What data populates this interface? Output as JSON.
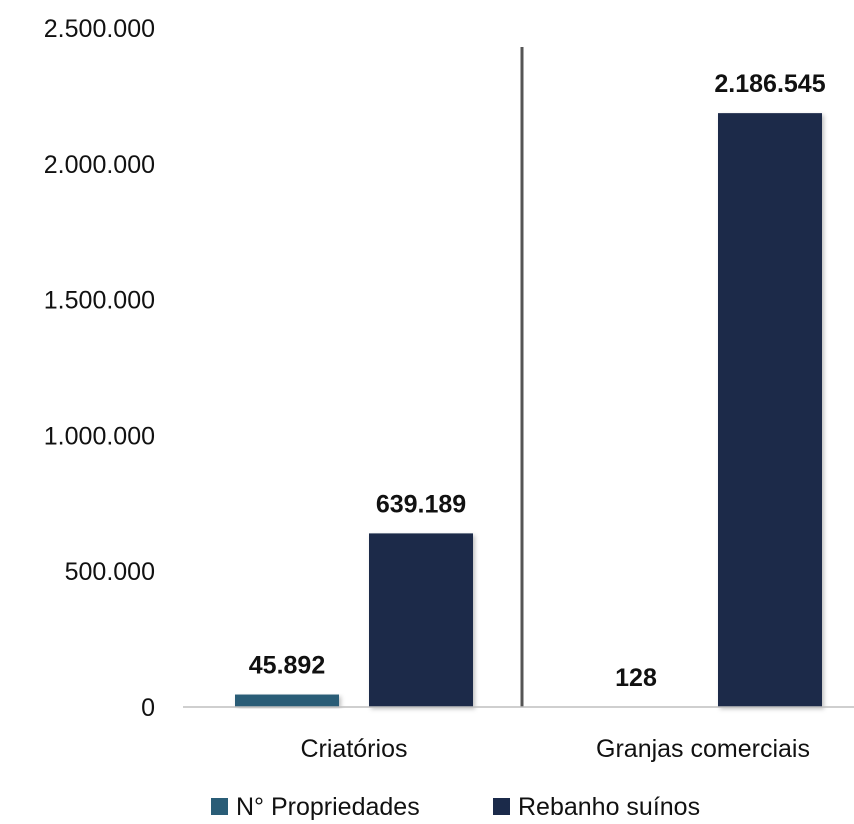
{
  "chart_data": {
    "type": "bar",
    "categories": [
      "Criatórios",
      "Granjas comerciais"
    ],
    "series": [
      {
        "name": "N° Propriedades",
        "color": "#2a5d77",
        "values": [
          45892,
          128
        ],
        "labels": [
          "45.892",
          "128"
        ]
      },
      {
        "name": "Rebanho suínos",
        "color": "#1b2a4a",
        "values": [
          639189,
          2186545
        ],
        "labels": [
          "639.189",
          "2.186.545"
        ]
      }
    ],
    "yticks": [
      {
        "value": 0,
        "label": "0"
      },
      {
        "value": 500000,
        "label": "500.000"
      },
      {
        "value": 1000000,
        "label": "1.000.000"
      },
      {
        "value": 1500000,
        "label": "1.500.000"
      },
      {
        "value": 2000000,
        "label": "2.000.000"
      },
      {
        "value": 2500000,
        "label": "2.500.000"
      }
    ],
    "ylim": [
      0,
      2500000
    ],
    "grid": false,
    "legend_position": "bottom",
    "category_separator": true,
    "title": "",
    "xlabel": "",
    "ylabel": ""
  }
}
